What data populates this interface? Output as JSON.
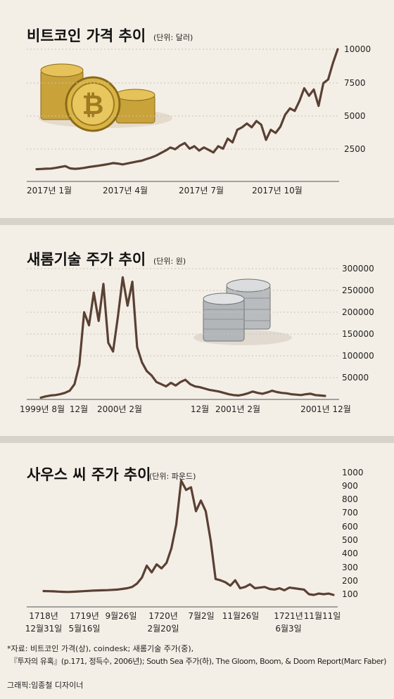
{
  "chart_data": [
    {
      "type": "line",
      "title": "비트코인 가격 추이",
      "unit": "(단위: 달러)",
      "xticks": [
        "2017년 1월",
        "2017년 4월",
        "2017년 7월",
        "2017년 10월"
      ],
      "yticks": [
        "2500",
        "5000",
        "7500",
        "10000"
      ],
      "ylim": [
        0,
        10500
      ],
      "grid": true,
      "series": [
        {
          "values": [
            970,
            990,
            1010,
            1020,
            1080,
            1150,
            1220,
            1040,
            1000,
            1030,
            1080,
            1150,
            1200,
            1250,
            1310,
            1380,
            1460,
            1420,
            1350,
            1430,
            1500,
            1580,
            1650,
            1780,
            1900,
            2050,
            2250,
            2450,
            2700,
            2550,
            2850,
            3050,
            2600,
            2800,
            2450,
            2700,
            2500,
            2300,
            2800,
            2600,
            3400,
            3100,
            4100,
            4300,
            4600,
            4300,
            4800,
            4500,
            3300,
            4100,
            3850,
            4350,
            5300,
            5800,
            5600,
            6400,
            7400,
            6800,
            7300,
            6000,
            7800,
            8100,
            9400,
            10500
          ]
        }
      ]
    },
    {
      "type": "line",
      "title": "새롬기술 주가 추이",
      "unit": "(단위: 원)",
      "xticks": [
        "1999년 8월",
        "12월",
        "2000년 2월",
        "12월",
        "2001년 2월",
        "2001년 12월"
      ],
      "yticks": [
        "50000",
        "100000",
        "150000",
        "200000",
        "250000",
        "300000"
      ],
      "ylim": [
        0,
        300000
      ],
      "grid": true,
      "series": [
        {
          "values": [
            4000,
            7000,
            9000,
            10000,
            12000,
            15000,
            20000,
            35000,
            80000,
            200000,
            170000,
            245000,
            180000,
            265000,
            130000,
            110000,
            190000,
            280000,
            215000,
            270000,
            120000,
            85000,
            65000,
            55000,
            40000,
            35000,
            30000,
            38000,
            32000,
            40000,
            45000,
            35000,
            30000,
            28000,
            25000,
            22000,
            20000,
            18000,
            15000,
            12000,
            10000,
            9000,
            11000,
            14000,
            18000,
            15000,
            13000,
            16000,
            20000,
            17000,
            15000,
            14000,
            12000,
            11000,
            10000,
            12000,
            13000,
            10000,
            9000,
            8000
          ]
        }
      ]
    },
    {
      "type": "line",
      "title": "사우스 씨 주가 추이",
      "unit": "(단위: 파운드)",
      "xticks": [
        "1718년\n12월31일",
        "1719년\n5월16일",
        "9월26일",
        "1720년\n2월20일",
        "7월2일",
        "11월26일",
        "1721년\n6월3일",
        "11월11일"
      ],
      "yticks": [
        "100",
        "200",
        "300",
        "400",
        "500",
        "600",
        "700",
        "800",
        "900",
        "1000"
      ],
      "ylim": [
        0,
        1000
      ],
      "grid": false,
      "series": [
        {
          "values": [
            119,
            118,
            117,
            115,
            113,
            112,
            114,
            116,
            118,
            120,
            122,
            124,
            125,
            126,
            128,
            130,
            135,
            140,
            150,
            175,
            220,
            310,
            260,
            320,
            290,
            330,
            440,
            620,
            950,
            880,
            900,
            720,
            800,
            720,
            500,
            210,
            200,
            185,
            160,
            200,
            140,
            150,
            170,
            140,
            145,
            150,
            135,
            130,
            140,
            125,
            145,
            140,
            135,
            130,
            95,
            90,
            100,
            95,
            100,
            90
          ]
        }
      ]
    }
  ],
  "footnote": {
    "line1": "*자료: 비트코인 가격(상), coindesk; 새롬기술 주가(중),",
    "line2": "『투자의 유혹』(p.171, 정득수, 2006년); South Sea 주가(하), The Gloom, Boom, & Doom Report(Marc Faber)",
    "credit": "그래픽:임종철 디자이너"
  },
  "colors": {
    "line": "#5a4034",
    "background": "#f4efe6",
    "separator": "#d7d2ca"
  }
}
